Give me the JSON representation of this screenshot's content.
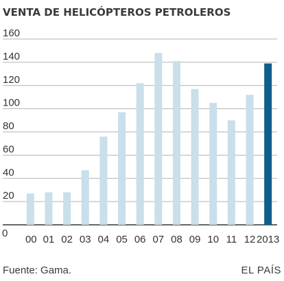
{
  "header": {
    "title": "VENTA DE HELICÓPTEROS PETROLEROS"
  },
  "footer": {
    "source": "Fuente: Gama.",
    "brand": "EL PAÍS"
  },
  "colors": {
    "bar": "#c9dfea",
    "highlight": "#0f5d8c",
    "grid": "#b3b3b3",
    "axis": "#333333"
  },
  "chart_data": {
    "type": "bar",
    "title": "VENTA DE HELICÓPTEROS PETROLEROS",
    "xlabel": "",
    "ylabel": "",
    "ylim": [
      0,
      160
    ],
    "yticks": [
      0,
      20,
      40,
      60,
      80,
      100,
      120,
      140,
      160
    ],
    "grid": true,
    "categories": [
      "00",
      "01",
      "02",
      "03",
      "04",
      "05",
      "06",
      "07",
      "08",
      "09",
      "10",
      "11",
      "12",
      "2013"
    ],
    "values": [
      27,
      28,
      28,
      47,
      76,
      97,
      122,
      148,
      141,
      117,
      105,
      90,
      112,
      139
    ],
    "highlight_category": "2013"
  }
}
